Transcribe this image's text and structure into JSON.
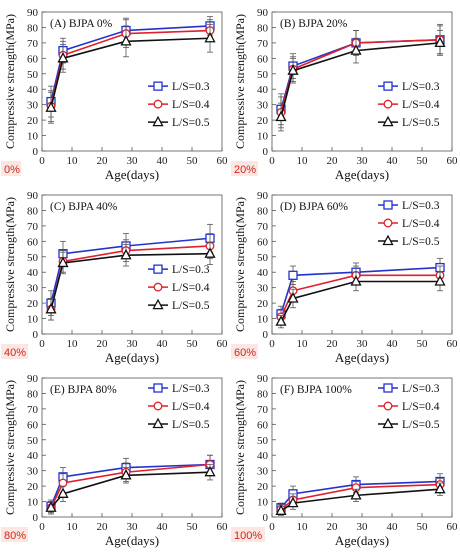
{
  "series_styles": [
    {
      "key": "ls03",
      "color": "#2233cc",
      "marker": "square"
    },
    {
      "key": "ls04",
      "color": "#e0202a",
      "marker": "circle"
    },
    {
      "key": "ls05",
      "color": "#111111",
      "marker": "triangle"
    }
  ],
  "tag_color": "#d0281e",
  "tag_bg": "#fbe6e2",
  "chart_data": [
    {
      "type": "line",
      "title": "(A)  BJPA 0%",
      "tag": "0%",
      "xlabel": "Age(days)",
      "ylabel": "Compressive strength(MPa)",
      "xlim": [
        0,
        60
      ],
      "ylim": [
        0,
        90
      ],
      "xticks": [
        0,
        10,
        20,
        30,
        40,
        50,
        60
      ],
      "yticks": [
        0,
        10,
        20,
        30,
        40,
        50,
        60,
        70,
        80,
        90
      ],
      "legend": "inside-right",
      "x": [
        3,
        7,
        28,
        56
      ],
      "series": [
        {
          "name": "L/S=0.3",
          "values": [
            32,
            65,
            78,
            81
          ],
          "err": [
            10,
            8,
            8,
            6
          ]
        },
        {
          "name": "L/S=0.4",
          "values": [
            29,
            62,
            76,
            78
          ],
          "err": [
            10,
            9,
            9,
            7
          ]
        },
        {
          "name": "L/S=0.5",
          "values": [
            28,
            60,
            71,
            73
          ],
          "err": [
            10,
            9,
            10,
            9
          ]
        }
      ]
    },
    {
      "type": "line",
      "title": "(B)  BJPA 20%",
      "tag": "20%",
      "xlabel": "Age(days)",
      "ylabel": "Compressive strength(MPa)",
      "xlim": [
        0,
        60
      ],
      "ylim": [
        0,
        90
      ],
      "xticks": [
        0,
        10,
        20,
        30,
        40,
        50,
        60
      ],
      "yticks": [
        0,
        10,
        20,
        30,
        40,
        50,
        60,
        70,
        80,
        90
      ],
      "legend": "inside-right",
      "x": [
        3,
        7,
        28,
        56
      ],
      "series": [
        {
          "name": "L/S=0.3",
          "values": [
            27,
            55,
            70,
            72
          ],
          "err": [
            10,
            8,
            8,
            10
          ]
        },
        {
          "name": "L/S=0.4",
          "values": [
            25,
            53,
            70,
            72
          ],
          "err": [
            10,
            8,
            8,
            9
          ]
        },
        {
          "name": "L/S=0.5",
          "values": [
            22,
            52,
            65,
            70
          ],
          "err": [
            9,
            8,
            8,
            8
          ]
        }
      ]
    },
    {
      "type": "line",
      "title": "(C)  BJPA 40%",
      "tag": "40%",
      "xlabel": "Age(days)",
      "ylabel": "Compressive strength(MPa)",
      "xlim": [
        0,
        60
      ],
      "ylim": [
        0,
        90
      ],
      "xticks": [
        0,
        10,
        20,
        30,
        40,
        50,
        60
      ],
      "yticks": [
        0,
        10,
        20,
        30,
        40,
        50,
        60,
        70,
        80,
        90
      ],
      "legend": "inside-right",
      "x": [
        3,
        7,
        28,
        56
      ],
      "series": [
        {
          "name": "L/S=0.3",
          "values": [
            20,
            52,
            57,
            62
          ],
          "err": [
            8,
            8,
            8,
            9
          ]
        },
        {
          "name": "L/S=0.4",
          "values": [
            16,
            47,
            54,
            57
          ],
          "err": [
            7,
            7,
            7,
            8
          ]
        },
        {
          "name": "L/S=0.5",
          "values": [
            16,
            46,
            51,
            52
          ],
          "err": [
            7,
            7,
            7,
            7
          ]
        }
      ]
    },
    {
      "type": "line",
      "title": "(D)  BJPA 60%",
      "tag": "60%",
      "xlabel": "Age(days)",
      "ylabel": "Compressive strength(MPa)",
      "xlim": [
        0,
        60
      ],
      "ylim": [
        0,
        90
      ],
      "xticks": [
        0,
        10,
        20,
        30,
        40,
        50,
        60
      ],
      "yticks": [
        0,
        10,
        20,
        30,
        40,
        50,
        60,
        70,
        80,
        90
      ],
      "legend": "top-right",
      "x": [
        3,
        7,
        28,
        56
      ],
      "series": [
        {
          "name": "L/S=0.3",
          "values": [
            13,
            38,
            40,
            43
          ],
          "err": [
            5,
            6,
            6,
            6
          ]
        },
        {
          "name": "L/S=0.4",
          "values": [
            11,
            28,
            38,
            38
          ],
          "err": [
            5,
            6,
            6,
            6
          ]
        },
        {
          "name": "L/S=0.5",
          "values": [
            8,
            23,
            34,
            34
          ],
          "err": [
            4,
            6,
            6,
            6
          ]
        }
      ]
    },
    {
      "type": "line",
      "title": "(E)  BJPA 80%",
      "tag": "80%",
      "xlabel": "Age(days)",
      "ylabel": "Compressive strength(MPa)",
      "xlim": [
        0,
        60
      ],
      "ylim": [
        0,
        90
      ],
      "xticks": [
        0,
        10,
        20,
        30,
        40,
        50,
        60
      ],
      "yticks": [
        0,
        10,
        20,
        30,
        40,
        50,
        60,
        70,
        80,
        90
      ],
      "legend": "top-right",
      "x": [
        3,
        7,
        28,
        56
      ],
      "series": [
        {
          "name": "L/S=0.3",
          "values": [
            7,
            26,
            32,
            34
          ],
          "err": [
            4,
            6,
            6,
            6
          ]
        },
        {
          "name": "L/S=0.4",
          "values": [
            6,
            22,
            29,
            34
          ],
          "err": [
            4,
            6,
            6,
            6
          ]
        },
        {
          "name": "L/S=0.5",
          "values": [
            6,
            15,
            27,
            29
          ],
          "err": [
            4,
            5,
            5,
            5
          ]
        }
      ]
    },
    {
      "type": "line",
      "title": "(F)  BJPA 100%",
      "tag": "100%",
      "xlabel": "Age(days)",
      "ylabel": "Compressive strength(MPa)",
      "xlim": [
        0,
        60
      ],
      "ylim": [
        0,
        90
      ],
      "xticks": [
        0,
        10,
        20,
        30,
        40,
        50,
        60
      ],
      "yticks": [
        0,
        10,
        20,
        30,
        40,
        50,
        60,
        70,
        80,
        90
      ],
      "legend": "top-right",
      "x": [
        3,
        7,
        28,
        56
      ],
      "series": [
        {
          "name": "L/S=0.3",
          "values": [
            6,
            15,
            21,
            23
          ],
          "err": [
            3,
            5,
            5,
            5
          ]
        },
        {
          "name": "L/S=0.4",
          "values": [
            5,
            11,
            19,
            21
          ],
          "err": [
            3,
            4,
            4,
            4
          ]
        },
        {
          "name": "L/S=0.5",
          "values": [
            4,
            9,
            14,
            18
          ],
          "err": [
            3,
            4,
            4,
            4
          ]
        }
      ]
    }
  ]
}
